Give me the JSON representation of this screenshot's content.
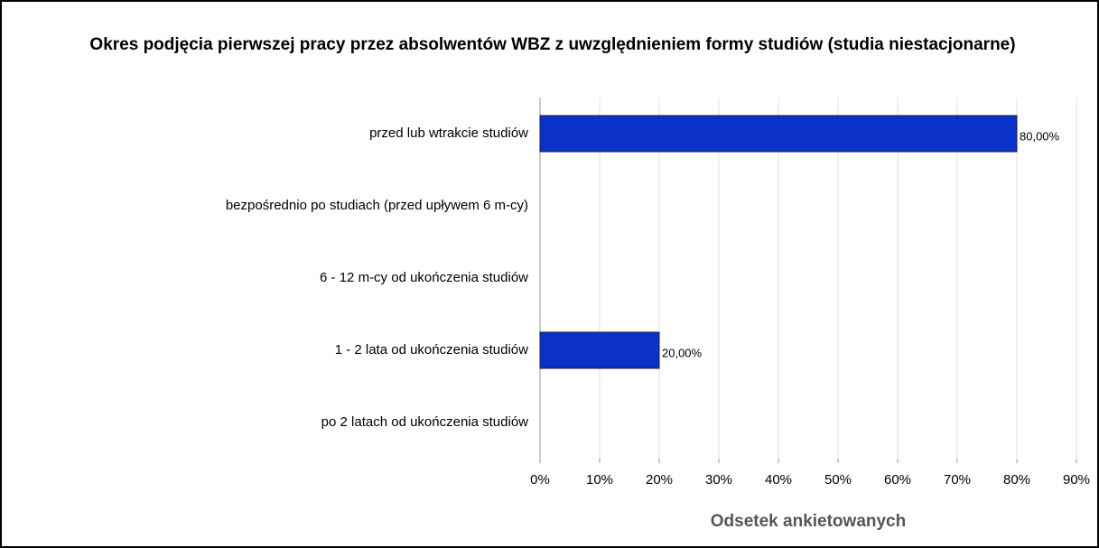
{
  "chart_data": {
    "type": "barh",
    "title": "Okres podjęcia pierwszej pracy przez absolwentów WBZ z uwzględnieniem formy studiów (studia niestacjonarne)",
    "categories": [
      "przed lub wtrakcie studiów",
      "bezpośrednio po studiach (przed upływem 6 m-cy)",
      "6 - 12 m-cy od ukończenia studiów",
      "1 - 2 lata od ukończenia studiów",
      "po 2 latach od ukończenia studiów"
    ],
    "values": [
      80,
      0,
      0,
      20,
      0
    ],
    "value_labels": [
      "80,00%",
      null,
      null,
      "20,00%",
      null
    ],
    "color": "#0a32c8",
    "xlabel": "Odsetek ankietowanych",
    "xlim": [
      0,
      90
    ],
    "xticks": [
      {
        "value": 0,
        "label": "0%"
      },
      {
        "value": 10,
        "label": "10%"
      },
      {
        "value": 20,
        "label": "20%"
      },
      {
        "value": 30,
        "label": "30%"
      },
      {
        "value": 40,
        "label": "40%"
      },
      {
        "value": 50,
        "label": "50%"
      },
      {
        "value": 60,
        "label": "60%"
      },
      {
        "value": 70,
        "label": "70%"
      },
      {
        "value": 80,
        "label": "80%"
      },
      {
        "value": 90,
        "label": "90%"
      }
    ],
    "grid": true
  }
}
